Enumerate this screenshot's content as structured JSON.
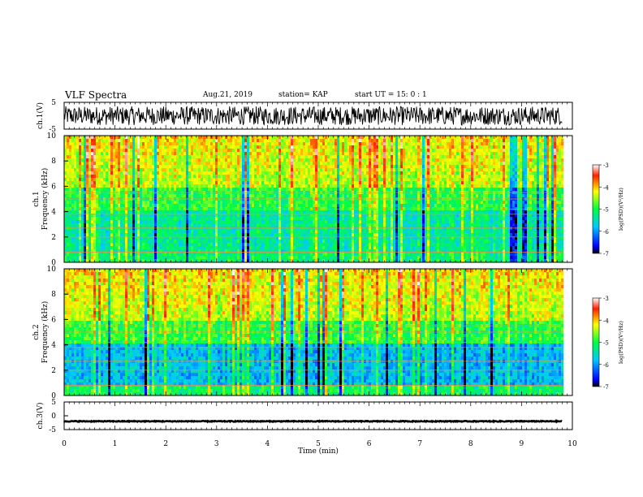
{
  "header": {
    "title": "VLF Spectra",
    "date": "Aug.21, 2019",
    "station": "station= KAP",
    "start": "start UT =  15: 0 : 1"
  },
  "chart_data": [
    {
      "type": "line",
      "panel": "ch1-waveform",
      "ylabel": "ch.1(V)",
      "ylim": [
        -5,
        5
      ],
      "yticks": [
        "5",
        "-5"
      ],
      "xlim": [
        0,
        10
      ],
      "data_end": 9.8,
      "series": [
        {
          "name": "",
          "description_values": {
            "mean": 0,
            "amplitude": 3.5
          }
        }
      ]
    },
    {
      "type": "heatmap",
      "panel": "ch1-spectrogram",
      "ylabel": "ch.1",
      "ylabel2": "Frequency (kHz)",
      "ylim": [
        0,
        10
      ],
      "yticks": [
        "0",
        "2",
        "4",
        "6",
        "8",
        "10"
      ],
      "xlim": [
        0,
        10
      ],
      "data_end": 9.8,
      "colorbar": {
        "label": "log(PSD)(V²/Hz)",
        "ticks": [
          "-3",
          "-4",
          "-5",
          "-6",
          "-7"
        ],
        "range": [
          -7,
          -3
        ]
      }
    },
    {
      "type": "heatmap",
      "panel": "ch2-spectrogram",
      "ylabel": "ch.2",
      "ylabel2": "Frequency (kHz)",
      "ylim": [
        0,
        10
      ],
      "yticks": [
        "0",
        "2",
        "4",
        "6",
        "8",
        "10"
      ],
      "xlim": [
        0,
        10
      ],
      "data_end": 9.8,
      "colorbar": {
        "label": "log(PSD)(V²/Hz)",
        "ticks": [
          "-3",
          "-4",
          "-5",
          "-6",
          "-7"
        ],
        "range": [
          -7,
          -3
        ]
      }
    },
    {
      "type": "line",
      "panel": "ch3-waveform",
      "ylabel": "ch.3(V)",
      "ylim": [
        -5,
        5
      ],
      "yticks": [
        "5",
        "0",
        "-5"
      ],
      "xlim": [
        0,
        10
      ],
      "data_end": 9.8,
      "series": [
        {
          "name": "",
          "description_values": {
            "mean": -2,
            "amplitude": 0.3
          }
        }
      ]
    }
  ],
  "xaxis": {
    "label": "Time (min)",
    "ticks": [
      "0",
      "1",
      "2",
      "3",
      "4",
      "5",
      "6",
      "7",
      "8",
      "9",
      "10"
    ]
  }
}
